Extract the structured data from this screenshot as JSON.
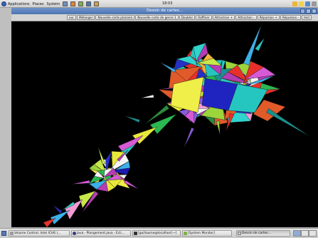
{
  "top_panel": {
    "menus": [
      "Applications",
      "Places",
      "System"
    ],
    "clock": "18:03"
  },
  "window": {
    "title": "Dessin de cartes..."
  },
  "toolbar": {
    "buttons": [
      "eur",
      "Mélanger",
      "Nouvelle carte planaire",
      "Nouvelle carte de genre 1",
      "Doubler",
      "Raffiner",
      "Attraction +",
      "Attraction -",
      "Répulsion +",
      "Répulsion -",
      "test"
    ]
  },
  "taskbar": {
    "tasks": [
      {
        "label": "Volume Control: Intel ICH6 (..."
      },
      {
        "label": "Java - Plongement.java - Ecli..."
      },
      {
        "label": "[guillaume@localhost:~]"
      },
      {
        "label": "[System Monitor]"
      },
      {
        "label": "Dessin de cartes..."
      }
    ]
  },
  "colors": {
    "canvas_background": "#000000",
    "titlebar": "#5a7fbd",
    "palette": [
      "#e8e83a",
      "#f0ee48",
      "#26c6c0",
      "#2fd4cc",
      "#2530c4",
      "#1a1ab0",
      "#c8e84a",
      "#e05a2a",
      "#e8302a",
      "#2ab852",
      "#2c8a3c",
      "#d65ad6",
      "#b43cb4",
      "#f29ad2",
      "#8a5ad8",
      "#f4f4f4",
      "#3cb0e8",
      "#9cd43c",
      "#1a9090",
      "#f0b43c"
    ]
  }
}
